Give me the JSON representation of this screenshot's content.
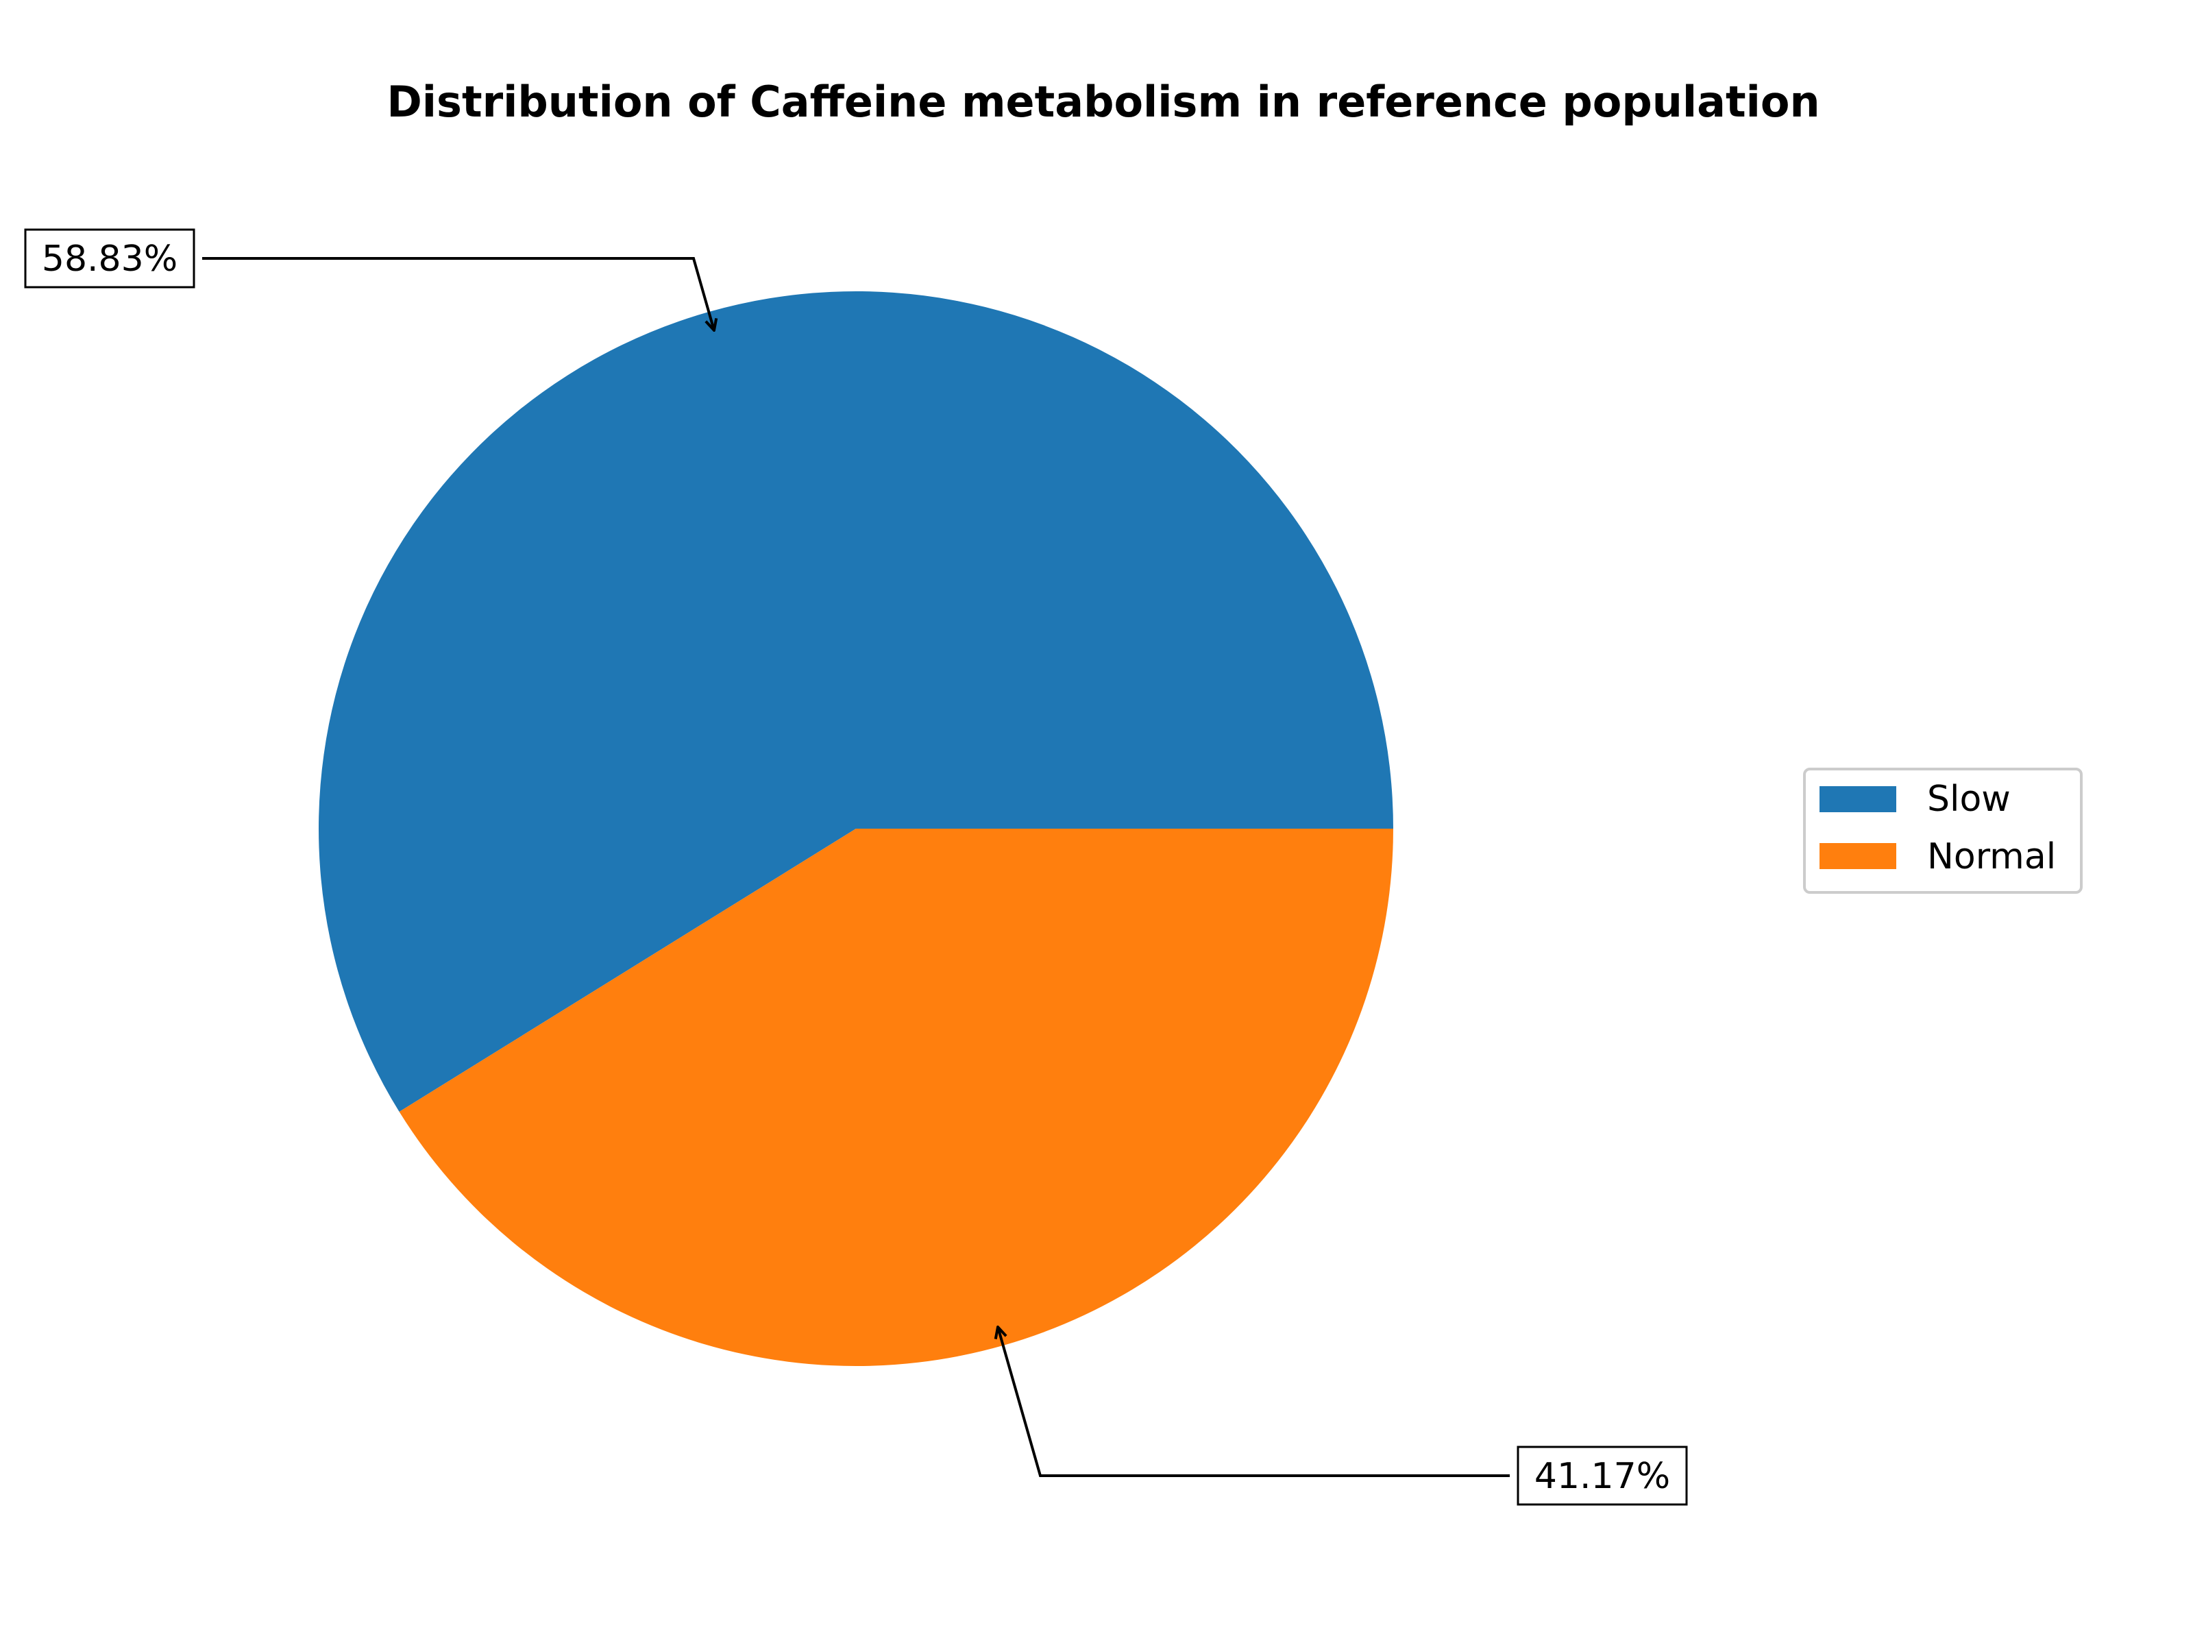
{
  "chart_data": {
    "type": "pie",
    "title": "Distribution of Caffeine metabolism in reference population",
    "categories": [
      "Slow",
      "Normal"
    ],
    "values": [
      58.83,
      41.17
    ],
    "labels": [
      "58.83%",
      "41.17%"
    ],
    "colors": [
      "#1f77b4",
      "#ff7f0e"
    ],
    "legend": {
      "position": "right",
      "entries": [
        "Slow",
        "Normal"
      ]
    }
  }
}
